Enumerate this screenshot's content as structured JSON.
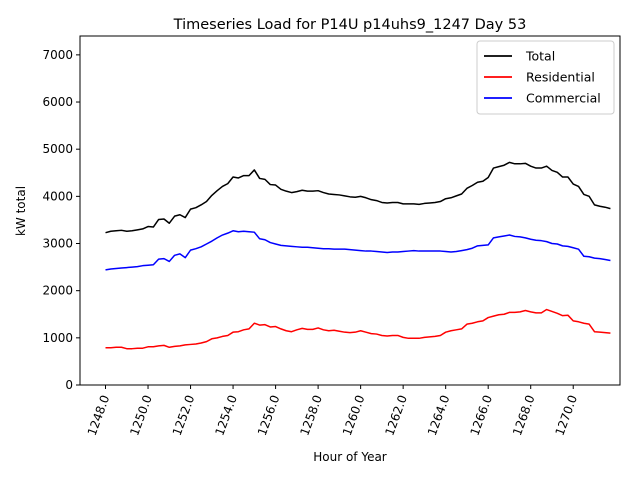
{
  "chart_data": {
    "type": "line",
    "title": "Timeseries Load for P14U p14uhs9_1247  Day 53",
    "xlabel": "Hour of Year",
    "ylabel": "kW total",
    "xlim": [
      1246.8,
      1272.2
    ],
    "ylim": [
      0,
      7400
    ],
    "xticks": [
      1248,
      1250,
      1252,
      1254,
      1256,
      1258,
      1260,
      1262,
      1264,
      1266,
      1268,
      1270
    ],
    "xtick_labels": [
      "1248.0",
      "1250.0",
      "1252.0",
      "1254.0",
      "1256.0",
      "1258.0",
      "1260.0",
      "1262.0",
      "1264.0",
      "1266.0",
      "1268.0",
      "1270.0"
    ],
    "yticks": [
      0,
      1000,
      2000,
      3000,
      4000,
      5000,
      6000,
      7000
    ],
    "ytick_labels": [
      "0",
      "1000",
      "2000",
      "3000",
      "4000",
      "5000",
      "6000",
      "7000"
    ],
    "legend_position": "top-right",
    "grid": false,
    "x_start": 1248,
    "x_step": 0.25,
    "series": [
      {
        "name": "Total",
        "color": "#000000",
        "values": [
          3230,
          3260,
          3270,
          3280,
          3260,
          3270,
          3290,
          3310,
          3360,
          3350,
          3510,
          3520,
          3430,
          3580,
          3610,
          3550,
          3730,
          3760,
          3820,
          3890,
          4020,
          4120,
          4210,
          4270,
          4410,
          4390,
          4440,
          4440,
          4560,
          4380,
          4360,
          4250,
          4240,
          4150,
          4110,
          4080,
          4100,
          4130,
          4110,
          4110,
          4120,
          4080,
          4050,
          4040,
          4030,
          4010,
          3990,
          3980,
          4000,
          3970,
          3930,
          3910,
          3870,
          3860,
          3870,
          3870,
          3840,
          3840,
          3840,
          3830,
          3850,
          3860,
          3870,
          3890,
          3950,
          3970,
          4010,
          4050,
          4170,
          4230,
          4300,
          4320,
          4400,
          4600,
          4630,
          4660,
          4720,
          4690,
          4690,
          4700,
          4640,
          4600,
          4600,
          4640,
          4550,
          4510,
          4410,
          4410,
          4260,
          4210,
          4040,
          4000,
          3820,
          3790,
          3770,
          3740
        ]
      },
      {
        "name": "Residential",
        "color": "#ff0000",
        "values": [
          790,
          790,
          800,
          800,
          770,
          770,
          780,
          780,
          810,
          810,
          830,
          840,
          800,
          820,
          830,
          850,
          860,
          870,
          890,
          920,
          980,
          1000,
          1030,
          1050,
          1120,
          1130,
          1170,
          1190,
          1310,
          1270,
          1280,
          1230,
          1240,
          1190,
          1150,
          1130,
          1170,
          1200,
          1180,
          1180,
          1210,
          1170,
          1150,
          1160,
          1140,
          1120,
          1110,
          1120,
          1150,
          1120,
          1090,
          1080,
          1050,
          1040,
          1050,
          1050,
          1010,
          990,
          990,
          990,
          1010,
          1020,
          1030,
          1050,
          1120,
          1150,
          1170,
          1190,
          1290,
          1310,
          1340,
          1360,
          1430,
          1460,
          1490,
          1500,
          1540,
          1540,
          1550,
          1580,
          1550,
          1530,
          1530,
          1600,
          1560,
          1520,
          1470,
          1480,
          1360,
          1340,
          1310,
          1290,
          1130,
          1120,
          1110,
          1100
        ]
      },
      {
        "name": "Commercial",
        "color": "#0000ff",
        "values": [
          2440,
          2460,
          2470,
          2480,
          2490,
          2500,
          2510,
          2530,
          2540,
          2550,
          2670,
          2680,
          2620,
          2750,
          2780,
          2700,
          2860,
          2890,
          2930,
          2990,
          3050,
          3120,
          3180,
          3220,
          3270,
          3250,
          3260,
          3250,
          3240,
          3100,
          3080,
          3020,
          2990,
          2960,
          2950,
          2940,
          2930,
          2920,
          2920,
          2910,
          2900,
          2890,
          2890,
          2880,
          2880,
          2880,
          2870,
          2860,
          2850,
          2840,
          2840,
          2830,
          2820,
          2810,
          2820,
          2820,
          2830,
          2840,
          2850,
          2840,
          2840,
          2840,
          2840,
          2840,
          2830,
          2820,
          2830,
          2850,
          2870,
          2900,
          2950,
          2960,
          2970,
          3120,
          3140,
          3160,
          3180,
          3150,
          3140,
          3120,
          3090,
          3070,
          3060,
          3040,
          3000,
          2990,
          2950,
          2940,
          2910,
          2880,
          2730,
          2720,
          2690,
          2680,
          2660,
          2640
        ]
      }
    ]
  }
}
